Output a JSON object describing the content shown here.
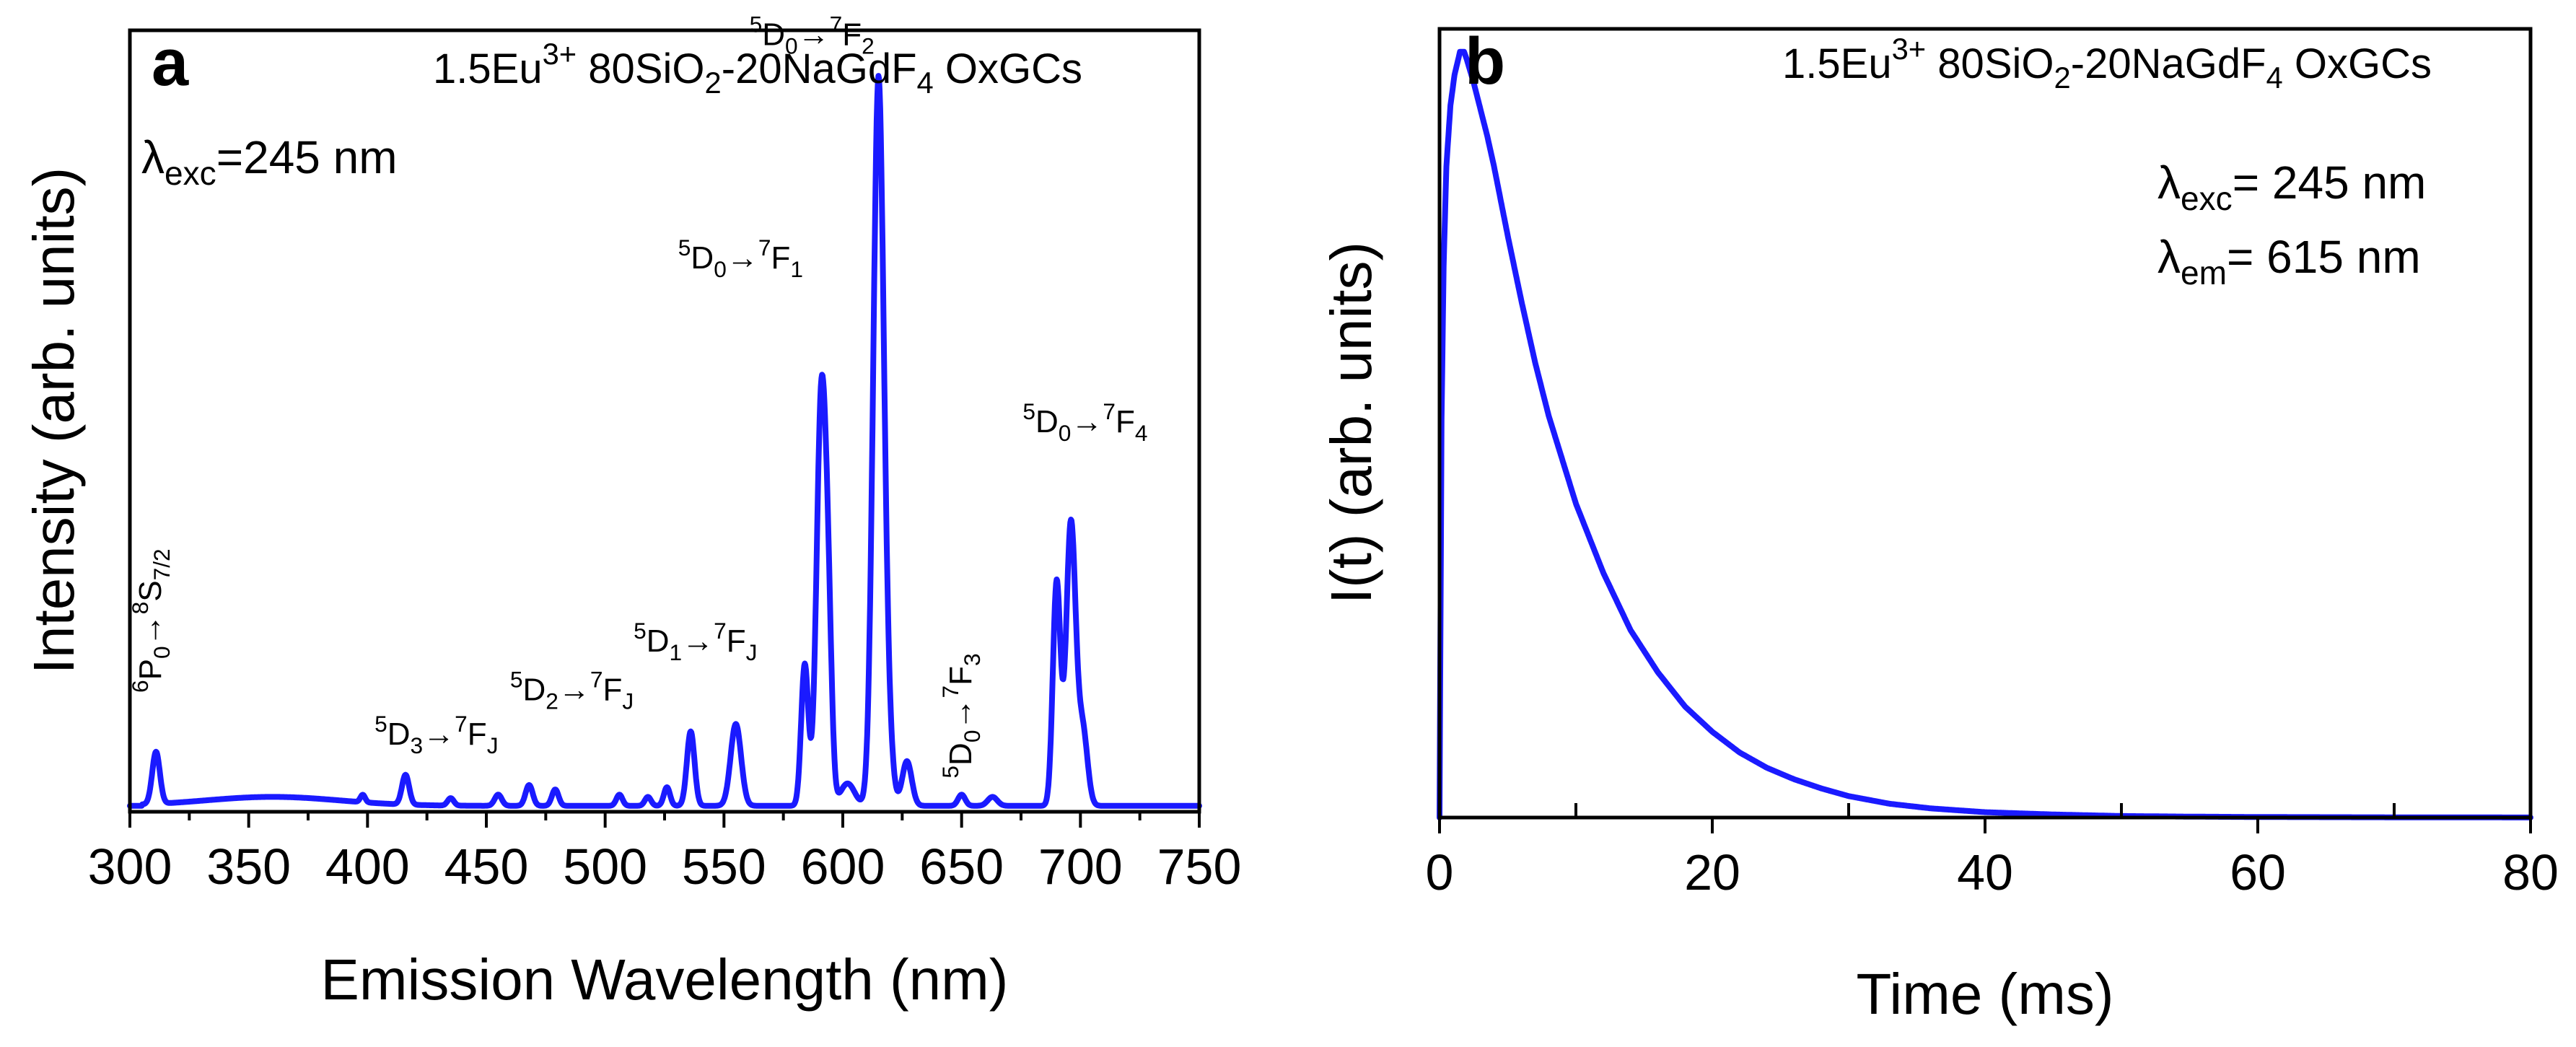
{
  "chart_data": [
    {
      "panel": "a",
      "type": "line",
      "sample_label": {
        "pre": "1.5Eu",
        "sup": "3+",
        "mid": " 80SiO",
        "sub1": "2",
        "mid2": "-20NaGdF",
        "sub2": "4",
        "post": " OxGCs"
      },
      "excitation": {
        "symbol": "λ",
        "sub": "exc",
        "text": "=245 nm"
      },
      "xlabel": "Emission Wavelength (nm)",
      "ylabel": "Intensity (arb. units)",
      "xlim": [
        300,
        750
      ],
      "ylim": [
        0,
        1.05
      ],
      "xticks": [
        300,
        350,
        400,
        450,
        500,
        550,
        600,
        650,
        700,
        750
      ],
      "baseline": 0.008,
      "background": {
        "center": 360,
        "width": 40,
        "amp": 0.012
      },
      "series": [
        {
          "name": "Emission spectrum",
          "color": "#1a1aff",
          "peaks": [
            {
              "x": 311,
              "y": 0.07,
              "w": 1.6
            },
            {
              "x": 398,
              "y": 0.01,
              "w": 1.0
            },
            {
              "x": 416,
              "y": 0.04,
              "w": 1.5
            },
            {
              "x": 435,
              "y": 0.01,
              "w": 1.3
            },
            {
              "x": 455,
              "y": 0.015,
              "w": 1.5
            },
            {
              "x": 468,
              "y": 0.028,
              "w": 1.5
            },
            {
              "x": 479,
              "y": 0.022,
              "w": 1.4
            },
            {
              "x": 506,
              "y": 0.015,
              "w": 1.3
            },
            {
              "x": 518,
              "y": 0.012,
              "w": 1.3
            },
            {
              "x": 526,
              "y": 0.025,
              "w": 1.3
            },
            {
              "x": 536,
              "y": 0.1,
              "w": 1.6
            },
            {
              "x": 555,
              "y": 0.11,
              "w": 2.2
            },
            {
              "x": 584,
              "y": 0.19,
              "w": 1.5
            },
            {
              "x": 591,
              "y": 0.55,
              "w": 2.0
            },
            {
              "x": 594,
              "y": 0.18,
              "w": 1.5
            },
            {
              "x": 602,
              "y": 0.03,
              "w": 3.0
            },
            {
              "x": 615,
              "y": 0.97,
              "w": 2.2
            },
            {
              "x": 619,
              "y": 0.08,
              "w": 2.0
            },
            {
              "x": 627,
              "y": 0.06,
              "w": 2.0
            },
            {
              "x": 650,
              "y": 0.015,
              "w": 1.5
            },
            {
              "x": 663,
              "y": 0.012,
              "w": 2.0
            },
            {
              "x": 690,
              "y": 0.3,
              "w": 1.6
            },
            {
              "x": 696,
              "y": 0.38,
              "w": 2.0
            },
            {
              "x": 701,
              "y": 0.1,
              "w": 2.0
            }
          ]
        }
      ],
      "annotations": [
        {
          "pre": "5",
          "a": "D",
          "asub": "0",
          "arrow": "→",
          "sup": "7",
          "b": "F",
          "bsub": "2",
          "x": 587,
          "y": 1.03,
          "rot": 0
        },
        {
          "pre": "5",
          "a": "D",
          "asub": "0",
          "arrow": "→",
          "sup": "7",
          "b": "F",
          "bsub": "1",
          "x": 557,
          "y": 0.73,
          "rot": 0
        },
        {
          "pre": "5",
          "a": "D",
          "asub": "0",
          "arrow": "→",
          "sup": "7",
          "b": "F",
          "bsub": "4",
          "x": 702,
          "y": 0.51,
          "rot": 0
        },
        {
          "pre": "5",
          "a": "D",
          "asub": "1",
          "arrow": "→",
          "sup": "7",
          "b": "F",
          "bsub": "J",
          "x": 538,
          "y": 0.215,
          "rot": 0
        },
        {
          "pre": "5",
          "a": "D",
          "asub": "2",
          "arrow": "→",
          "sup": "7",
          "b": "F",
          "bsub": "J",
          "x": 486,
          "y": 0.15,
          "rot": 0
        },
        {
          "pre": "5",
          "a": "D",
          "asub": "3",
          "arrow": "→",
          "sup": "7",
          "b": "F",
          "bsub": "J",
          "x": 429,
          "y": 0.09,
          "rot": 0
        },
        {
          "pre": "6",
          "a": "P",
          "asub": "0",
          "arrow": "→",
          "sup": "8",
          "b": "S",
          "bsub": "7/2",
          "x": 313,
          "y": 0.16,
          "rot": -90
        },
        {
          "pre": "5",
          "a": "D",
          "asub": "0",
          "arrow": "→",
          "sup": "7",
          "b": "F",
          "bsub": "3",
          "x": 654,
          "y": 0.045,
          "rot": -90
        }
      ]
    },
    {
      "panel": "b",
      "type": "line",
      "sample_label": {
        "pre": "1.5Eu",
        "sup": "3+",
        "mid": " 80SiO",
        "sub1": "2",
        "mid2": "-20NaGdF",
        "sub2": "4",
        "post": " OxGCs"
      },
      "excitation": {
        "symbol": "λ",
        "sub": "exc",
        "text": "= 245 nm"
      },
      "emission": {
        "symbol": "λ",
        "sub": "em",
        "text": "= 615 nm"
      },
      "xlabel": "Time (ms)",
      "ylabel": "I(t) (arb. units)",
      "xlim": [
        0,
        80
      ],
      "ylim": [
        0,
        1.03
      ],
      "xticks": [
        0,
        20,
        40,
        60,
        80
      ],
      "xminor": [
        10,
        30,
        50,
        70
      ],
      "series": [
        {
          "name": "Decay curve",
          "color": "#1a1aff",
          "x": [
            0,
            0.15,
            0.3,
            0.5,
            0.8,
            1.1,
            1.5,
            1.8,
            2.0,
            2.5,
            3.0,
            3.5,
            4.0,
            5,
            6,
            7,
            8,
            10,
            12,
            14,
            16,
            18,
            20,
            22,
            24,
            26,
            28,
            30,
            33,
            36,
            40,
            45,
            50,
            55,
            60,
            70,
            80
          ],
          "y": [
            0,
            0.52,
            0.72,
            0.85,
            0.93,
            0.97,
            1.0,
            1.0,
            0.99,
            0.96,
            0.925,
            0.89,
            0.85,
            0.76,
            0.675,
            0.595,
            0.525,
            0.41,
            0.32,
            0.245,
            0.19,
            0.145,
            0.112,
            0.085,
            0.065,
            0.05,
            0.038,
            0.028,
            0.018,
            0.012,
            0.007,
            0.004,
            0.002,
            0.0012,
            0.0007,
            0.0003,
            0.0001
          ]
        }
      ]
    }
  ]
}
